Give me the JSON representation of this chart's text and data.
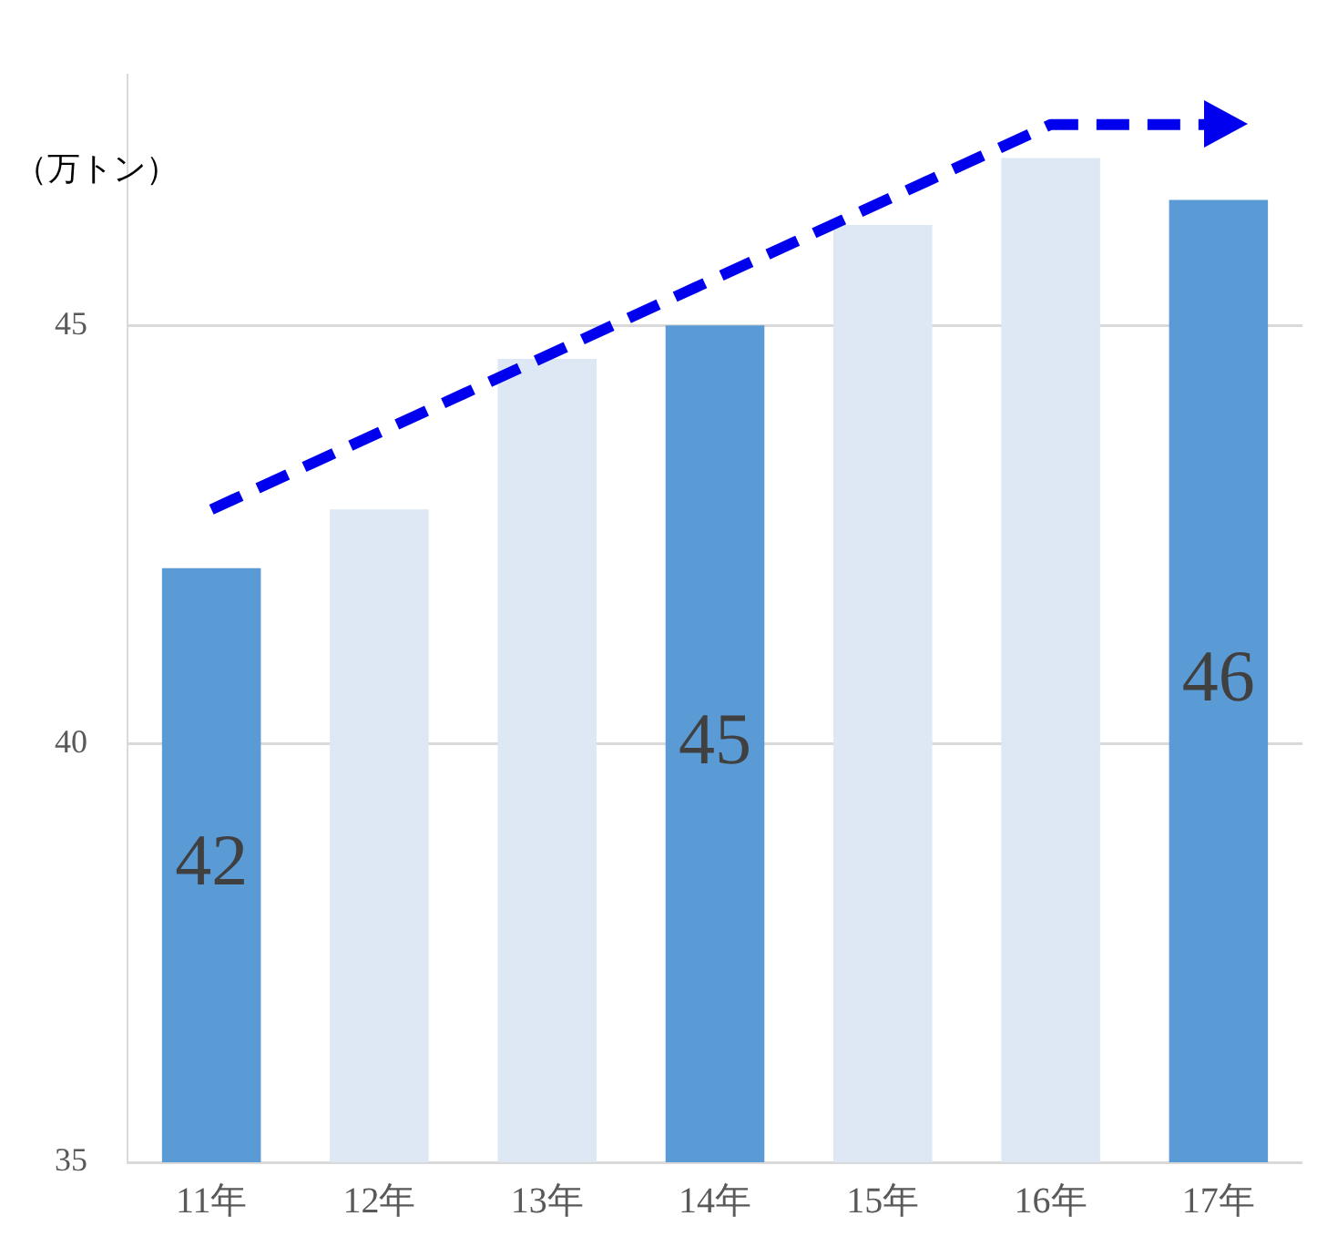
{
  "chart_data": {
    "type": "bar",
    "ylabel": "（万トン）",
    "categories": [
      "11年",
      "12年",
      "13年",
      "14年",
      "15年",
      "16年",
      "17年"
    ],
    "series": [
      {
        "colors": [
          "#5b9bd5",
          "#dde8f4",
          "#dde8f4",
          "#5b9bd5",
          "#dde8f4",
          "#dde8f4",
          "#5b9bd5"
        ],
        "values": [
          42.1,
          42.8,
          44.6,
          45.0,
          46.2,
          47.0,
          46.5
        ],
        "value_labels": [
          "42",
          null,
          null,
          "45",
          null,
          null,
          "46"
        ]
      },
      {
        "type": "line",
        "color": "#0000ee",
        "values": [
          42.8,
          null,
          null,
          null,
          null,
          47.4,
          47.4
        ],
        "line_style": "dashed",
        "marker": "none"
      }
    ],
    "ylim": [
      35,
      48
    ],
    "yticks": [
      35,
      40,
      45
    ],
    "grid": "y",
    "legend": false
  }
}
